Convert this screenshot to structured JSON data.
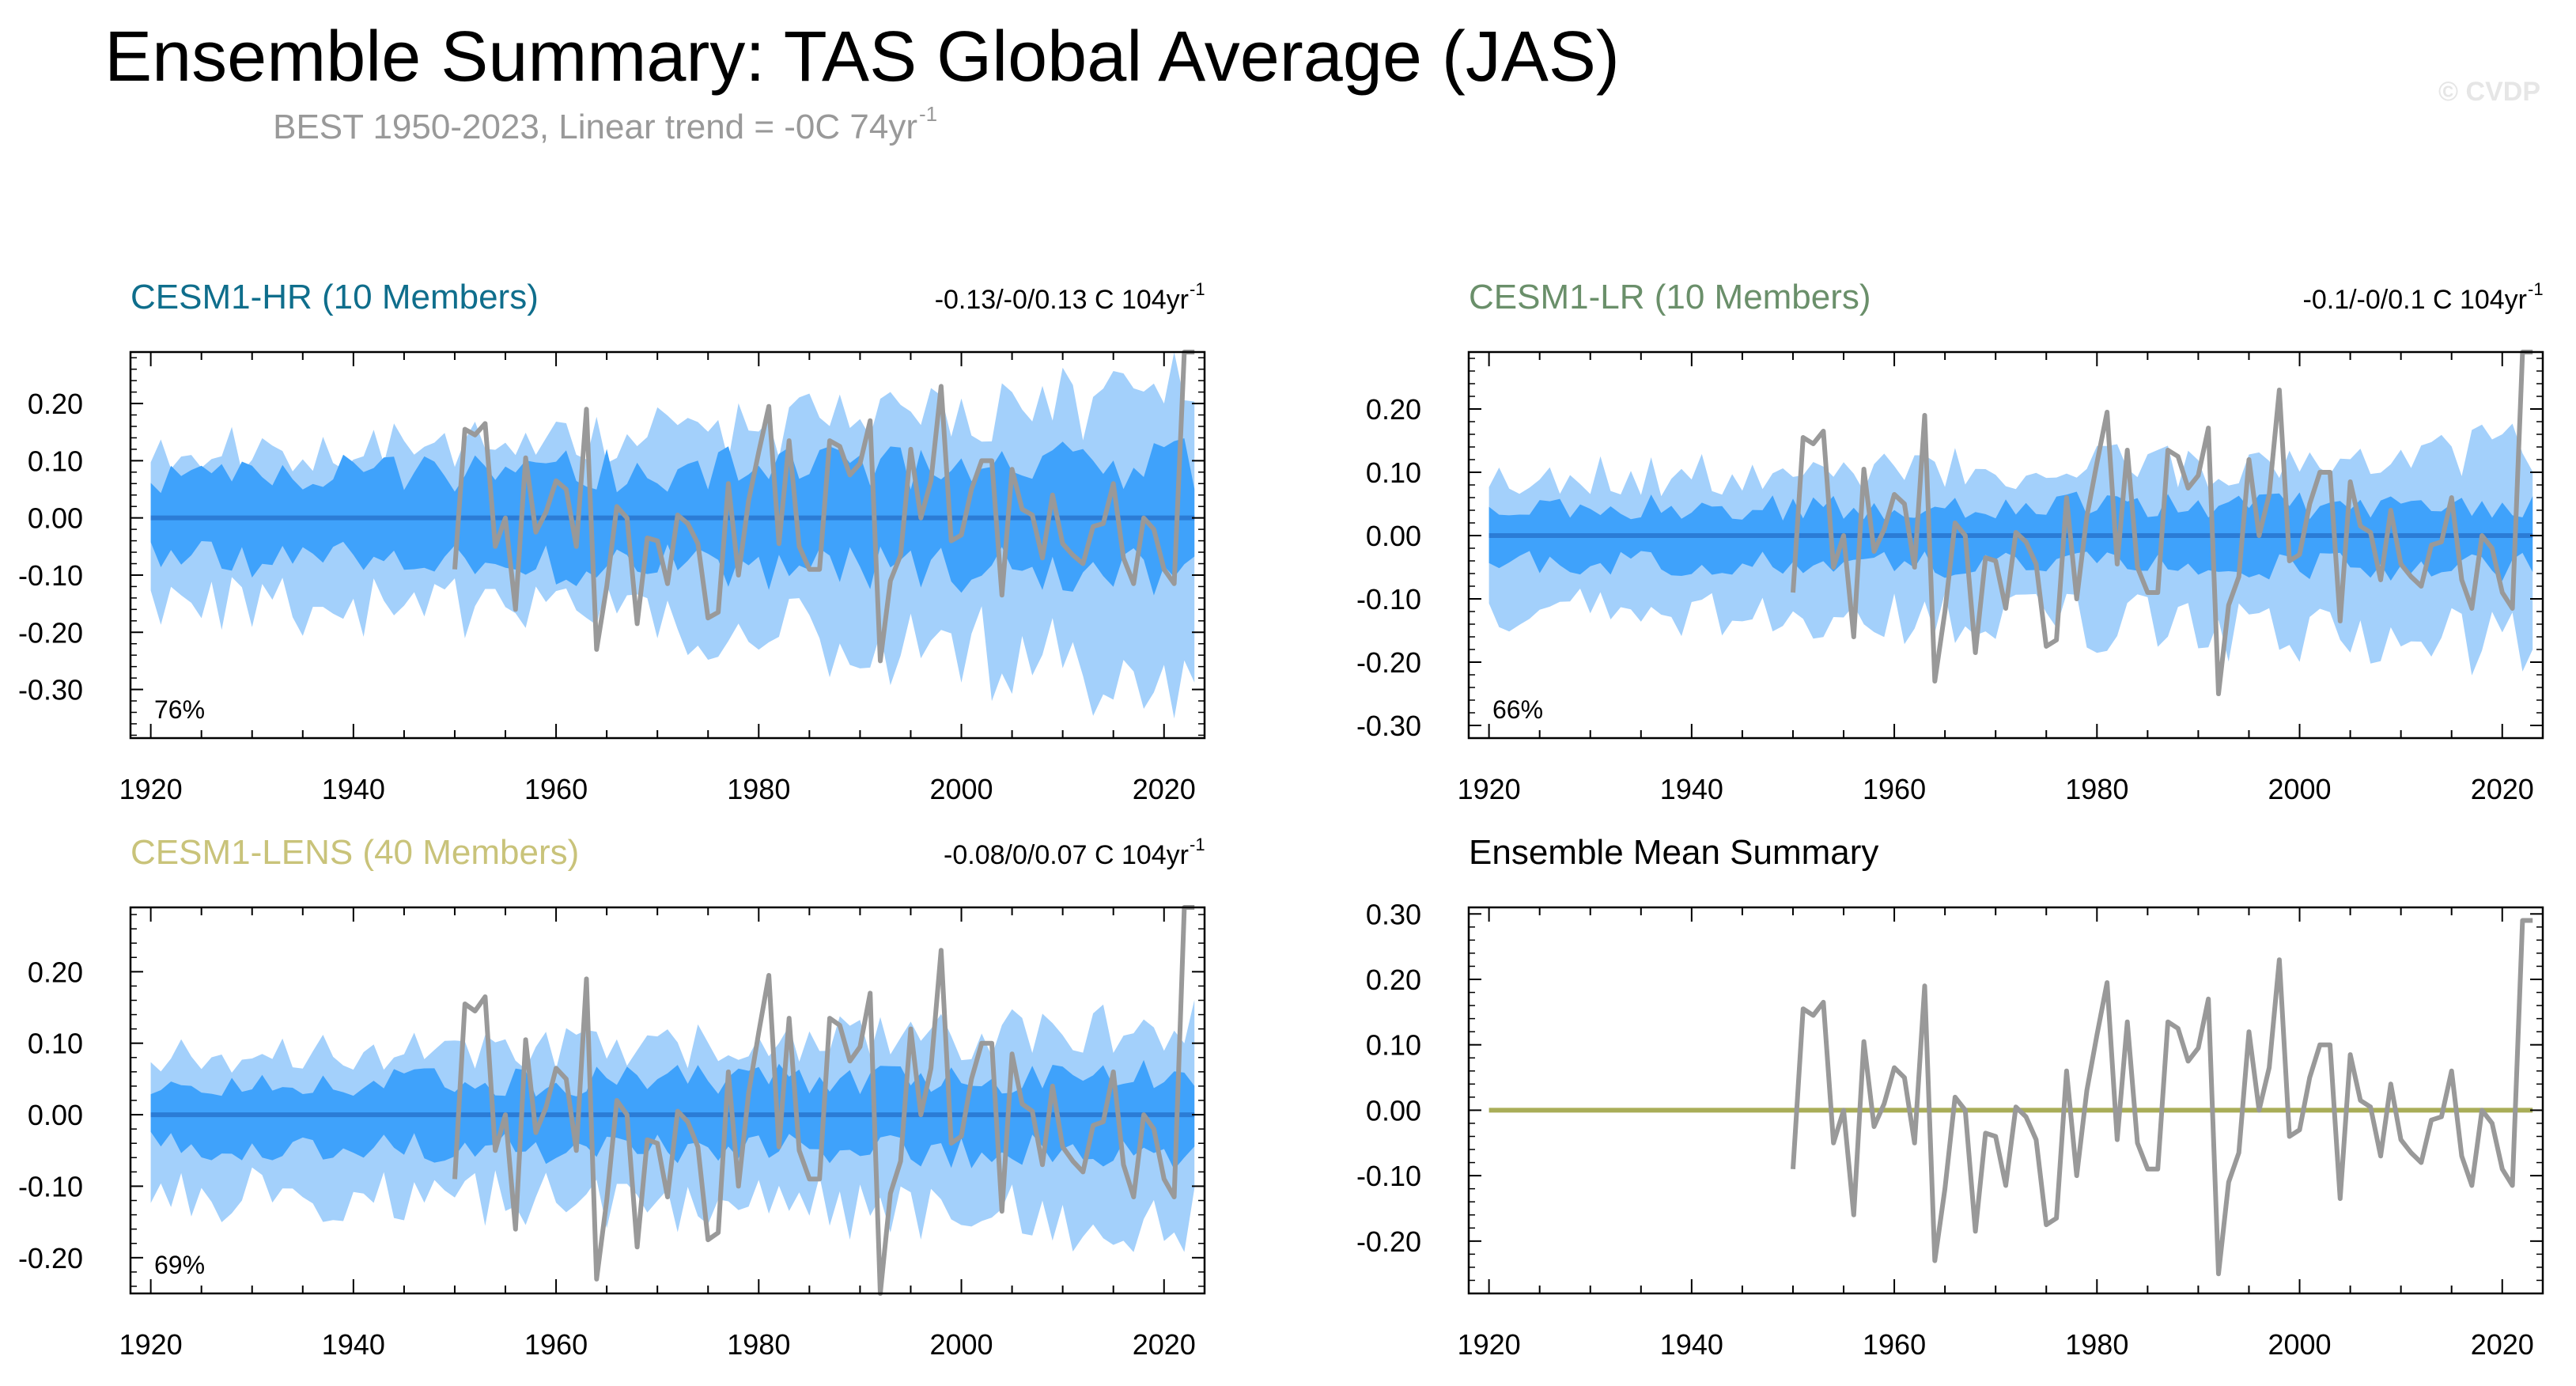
{
  "title": "Ensemble Summary: TAS Global Average (JAS)",
  "subtitle": {
    "main": "BEST 1950-2023, Linear trend = -0C 74yr",
    "sup": "-1"
  },
  "copyright": "© CVDP",
  "colors": {
    "outer_band": "#a3d0fb",
    "inner_band": "#3fa2fb",
    "mean_line": "#2b7cd6",
    "obs_line": "#999999",
    "summary_mean": "#a9ad58",
    "hr_title": "#0f6e8c",
    "lr_title": "#6a8f6a",
    "lens_title": "#c9c37a"
  },
  "chart_data": [
    {
      "id": "hr",
      "type": "area",
      "title": "CESM1-HR (10 Members)",
      "trend": "-0.13/-0/0.13 C 104yr",
      "trend_sup": "-1",
      "percent": "76%",
      "xlim": [
        1918,
        2024
      ],
      "ylim": [
        -0.385,
        0.29
      ],
      "xticks": [
        1920,
        1940,
        1960,
        1980,
        2000,
        2020
      ],
      "yticks": [
        0.2,
        0.1,
        0.0,
        -0.1,
        -0.2,
        -0.3
      ],
      "ytick_labels": [
        "0.20",
        "0.10",
        "0.00",
        "-0.10",
        "-0.20",
        "-0.30"
      ],
      "band_outer": 0.14,
      "band_inner": 0.075,
      "outer_growth": 0.9,
      "inner_growth": 0.35,
      "asym": 1.0,
      "seed": 11,
      "mean": 0.0
    },
    {
      "id": "lr",
      "type": "area",
      "title": "CESM1-LR (10 Members)",
      "trend": "-0.1/-0/0.1 C 104yr",
      "trend_sup": "-1",
      "percent": "66%",
      "xlim": [
        1918,
        2024
      ],
      "ylim": [
        -0.32,
        0.29
      ],
      "xticks": [
        1920,
        1940,
        1960,
        1980,
        2000,
        2020
      ],
      "yticks": [
        0.2,
        0.1,
        0.0,
        -0.1,
        -0.2,
        -0.3
      ],
      "ytick_labels": [
        "0.20",
        "0.10",
        "0.00",
        "-0.10",
        "-0.20",
        "-0.30"
      ],
      "band_outer": 0.11,
      "band_inner": 0.045,
      "outer_growth": 0.5,
      "inner_growth": 0.2,
      "asym": 1.0,
      "seed": 23,
      "mean": 0.0
    },
    {
      "id": "lens",
      "type": "area",
      "title": "CESM1-LENS (40 Members)",
      "trend": "-0.08/0/0.07 C 104yr",
      "trend_sup": "-1",
      "percent": "69%",
      "xlim": [
        1918,
        2024
      ],
      "ylim": [
        -0.25,
        0.29
      ],
      "xticks": [
        1920,
        1940,
        1960,
        1980,
        2000,
        2020
      ],
      "yticks": [
        0.2,
        0.1,
        0.0,
        -0.1,
        -0.2
      ],
      "ytick_labels": [
        "0.20",
        "0.10",
        "0.00",
        "-0.10",
        "-0.20"
      ],
      "band_outer": 0.105,
      "band_inner": 0.045,
      "outer_growth": 0.35,
      "inner_growth": 0.25,
      "asym": 1.0,
      "seed": 37,
      "mean": 0.0
    },
    {
      "id": "summary",
      "type": "line",
      "title": "Ensemble Mean Summary",
      "xlim": [
        1918,
        2024
      ],
      "ylim": [
        -0.28,
        0.31
      ],
      "xticks": [
        1920,
        1940,
        1960,
        1980,
        2000,
        2020
      ],
      "yticks": [
        0.3,
        0.2,
        0.1,
        0.0,
        -0.1,
        -0.2
      ],
      "ytick_labels": [
        "0.30",
        "0.20",
        "0.10",
        "0.00",
        "-0.10",
        "-0.20"
      ],
      "mean": 0.0
    }
  ],
  "observations": {
    "name": "BEST",
    "x": [
      1950,
      1951,
      1952,
      1953,
      1954,
      1955,
      1956,
      1957,
      1958,
      1959,
      1960,
      1961,
      1962,
      1963,
      1964,
      1965,
      1966,
      1967,
      1968,
      1969,
      1970,
      1971,
      1972,
      1973,
      1974,
      1975,
      1976,
      1977,
      1978,
      1979,
      1980,
      1981,
      1982,
      1983,
      1984,
      1985,
      1986,
      1987,
      1988,
      1989,
      1990,
      1991,
      1992,
      1993,
      1994,
      1995,
      1996,
      1997,
      1998,
      1999,
      2000,
      2001,
      2002,
      2003,
      2004,
      2005,
      2006,
      2007,
      2008,
      2009,
      2010,
      2011,
      2012,
      2013,
      2014,
      2015,
      2016,
      2017,
      2018,
      2019,
      2020,
      2021,
      2022,
      2023
    ],
    "y": [
      -0.09,
      0.155,
      0.145,
      0.165,
      -0.05,
      0.0,
      -0.16,
      0.105,
      -0.025,
      0.01,
      0.065,
      0.05,
      -0.05,
      0.19,
      -0.23,
      -0.12,
      0.02,
      0.0,
      -0.185,
      -0.035,
      -0.04,
      -0.115,
      0.005,
      -0.01,
      -0.045,
      -0.175,
      -0.165,
      0.06,
      -0.1,
      0.03,
      0.115,
      0.195,
      -0.045,
      0.135,
      -0.05,
      -0.09,
      -0.09,
      0.135,
      0.125,
      0.075,
      0.095,
      0.17,
      -0.25,
      -0.11,
      -0.065,
      0.12,
      0.0,
      0.065,
      0.23,
      -0.04,
      -0.03,
      0.05,
      0.1,
      0.1,
      -0.135,
      0.085,
      0.015,
      0.005,
      -0.07,
      0.04,
      -0.045,
      -0.065,
      -0.08,
      -0.015,
      -0.01,
      0.06,
      -0.07,
      -0.115,
      0.0,
      -0.02,
      -0.09,
      -0.115,
      0.29,
      0.29
    ]
  }
}
